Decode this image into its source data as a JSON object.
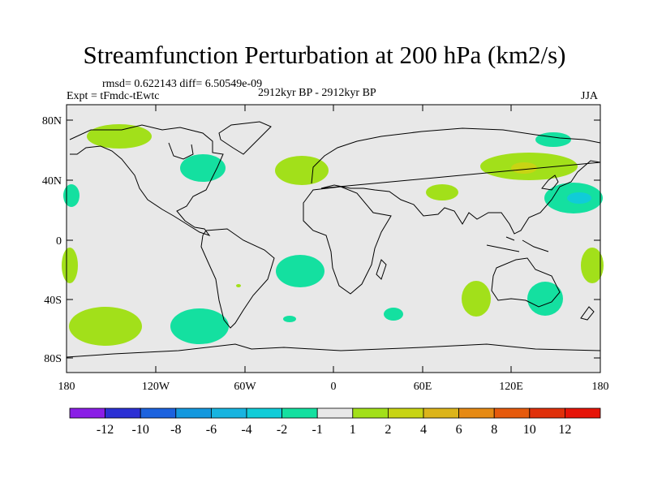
{
  "title": "Streamfunction Perturbation at 200 hPa (km2/s)",
  "stats_line": "rmsd= 0.622143 diff= 6.50549e-09",
  "experiment": "Expt = tFmdc-tEwtc",
  "period": "2912kyr BP - 2912kyr BP",
  "season": "JJA",
  "lat_labels": [
    "80N",
    "40N",
    "0",
    "40S",
    "80S"
  ],
  "lon_labels": [
    "180",
    "120W",
    "60W",
    "0",
    "60E",
    "120E",
    "180"
  ],
  "colorbar": {
    "labels": [
      "-12",
      "-10",
      "-8",
      "-6",
      "-4",
      "-2",
      "-1",
      "1",
      "2",
      "4",
      "6",
      "8",
      "10",
      "12"
    ],
    "colors": [
      "#8a1ee6",
      "#2c30d4",
      "#1c62de",
      "#1498de",
      "#18b4e0",
      "#10ccd8",
      "#14e0a0",
      "#e8e8e8",
      "#a2e01a",
      "#c8d414",
      "#dcb41a",
      "#e68a14",
      "#e65a0c",
      "#e0300a",
      "#e61408"
    ]
  },
  "colors": {
    "background": "#e8e8e8",
    "coast": "#000000",
    "neg_light": "#14e0a0",
    "neg_mid": "#10ccd8",
    "pos_light": "#a2e01a",
    "pos_mid": "#c8d414"
  }
}
